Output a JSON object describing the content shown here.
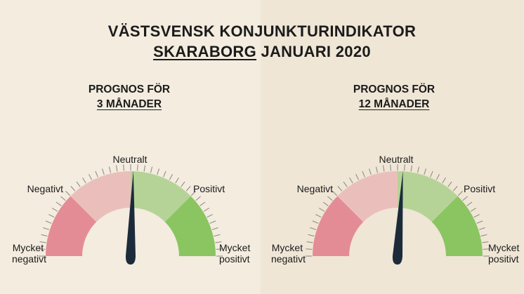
{
  "title": {
    "line1": "VÄSTSVENSK KONJUNKTURINDIKATOR",
    "region": "SKARABORG",
    "period": "JANUARI 2020"
  },
  "colors": {
    "very_negative": "#e48c95",
    "negative": "#eabfbb",
    "positive": "#b6d397",
    "very_positive": "#8ac561",
    "needle": "#1c2b3a",
    "ticks": "#8a8580"
  },
  "chart_data": [
    {
      "type": "gauge",
      "title_line1": "PROGNOS FÖR",
      "title_line2": "3 MÅNADER",
      "labels": {
        "very_negative": "Mycket negativt",
        "negative": "Negativt",
        "neutral": "Neutralt",
        "positive": "Positivt",
        "very_positive": "Mycket positivt"
      },
      "scale": [
        -100,
        100
      ],
      "value": 2
    },
    {
      "type": "gauge",
      "title_line1": "PROGNOS FÖR",
      "title_line2": "12 MÅNADER",
      "labels": {
        "very_negative": "Mycket negativt",
        "negative": "Negativt",
        "neutral": "Neutralt",
        "positive": "Positivt",
        "very_positive": "Mycket positivt"
      },
      "scale": [
        -100,
        100
      ],
      "value": 4
    }
  ]
}
